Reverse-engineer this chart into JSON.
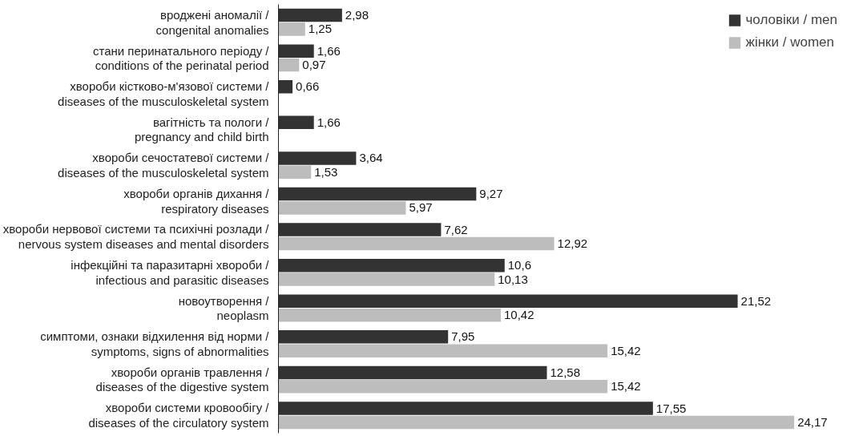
{
  "chart_data": {
    "type": "bar",
    "orientation": "horizontal",
    "categories": [
      "вроджені аномалії /\ncongenital anomalies",
      "стани перинатального періоду /\nconditions of the perinatal period",
      "хвороби кістково-м'язової системи /\ndiseases of the musculoskeletal system",
      "вагітність та пологи /\npregnancy and child birth",
      "хвороби сечостатевої системи /\ndiseases of the musculoskeletal system",
      "хвороби органів дихання /\nrespiratory diseases",
      "хвороби нервової системи та психічні розлади /\nnervous system diseases and mental disorders",
      "інфекційні та паразитарні хвороби /\ninfectious and parasitic diseases",
      "новоутворення /\nneoplasm",
      "симптоми, ознаки відхилення від норми /\nsymptoms, signs of abnormalities",
      "хвороби органів травлення /\ndiseases of the digestive system",
      "хвороби системи кровообігу /\ndiseases of the circulatory system"
    ],
    "series": [
      {
        "name": "чоловіки / men",
        "color": "#333333",
        "values": [
          2.98,
          1.66,
          0.66,
          1.66,
          3.64,
          9.27,
          7.62,
          10.6,
          21.52,
          7.95,
          12.58,
          17.55
        ],
        "value_labels": [
          "2,98",
          "1,66",
          "0,66",
          "1,66",
          "3,64",
          "9,27",
          "7,62",
          "10,6",
          "21,52",
          "7,95",
          "12,58",
          "17,55"
        ]
      },
      {
        "name": "жінки / women",
        "color": "#bdbdbd",
        "values": [
          1.25,
          0.97,
          null,
          null,
          1.53,
          5.97,
          12.92,
          10.13,
          10.42,
          15.42,
          15.42,
          24.17
        ],
        "value_labels": [
          "1,25",
          "0,97",
          null,
          null,
          "1,53",
          "5,97",
          "12,92",
          "10,13",
          "10,42",
          "15,42",
          "15,42",
          "24,17"
        ]
      }
    ],
    "legend": "top right",
    "grid": false,
    "tick_labels": "y"
  }
}
